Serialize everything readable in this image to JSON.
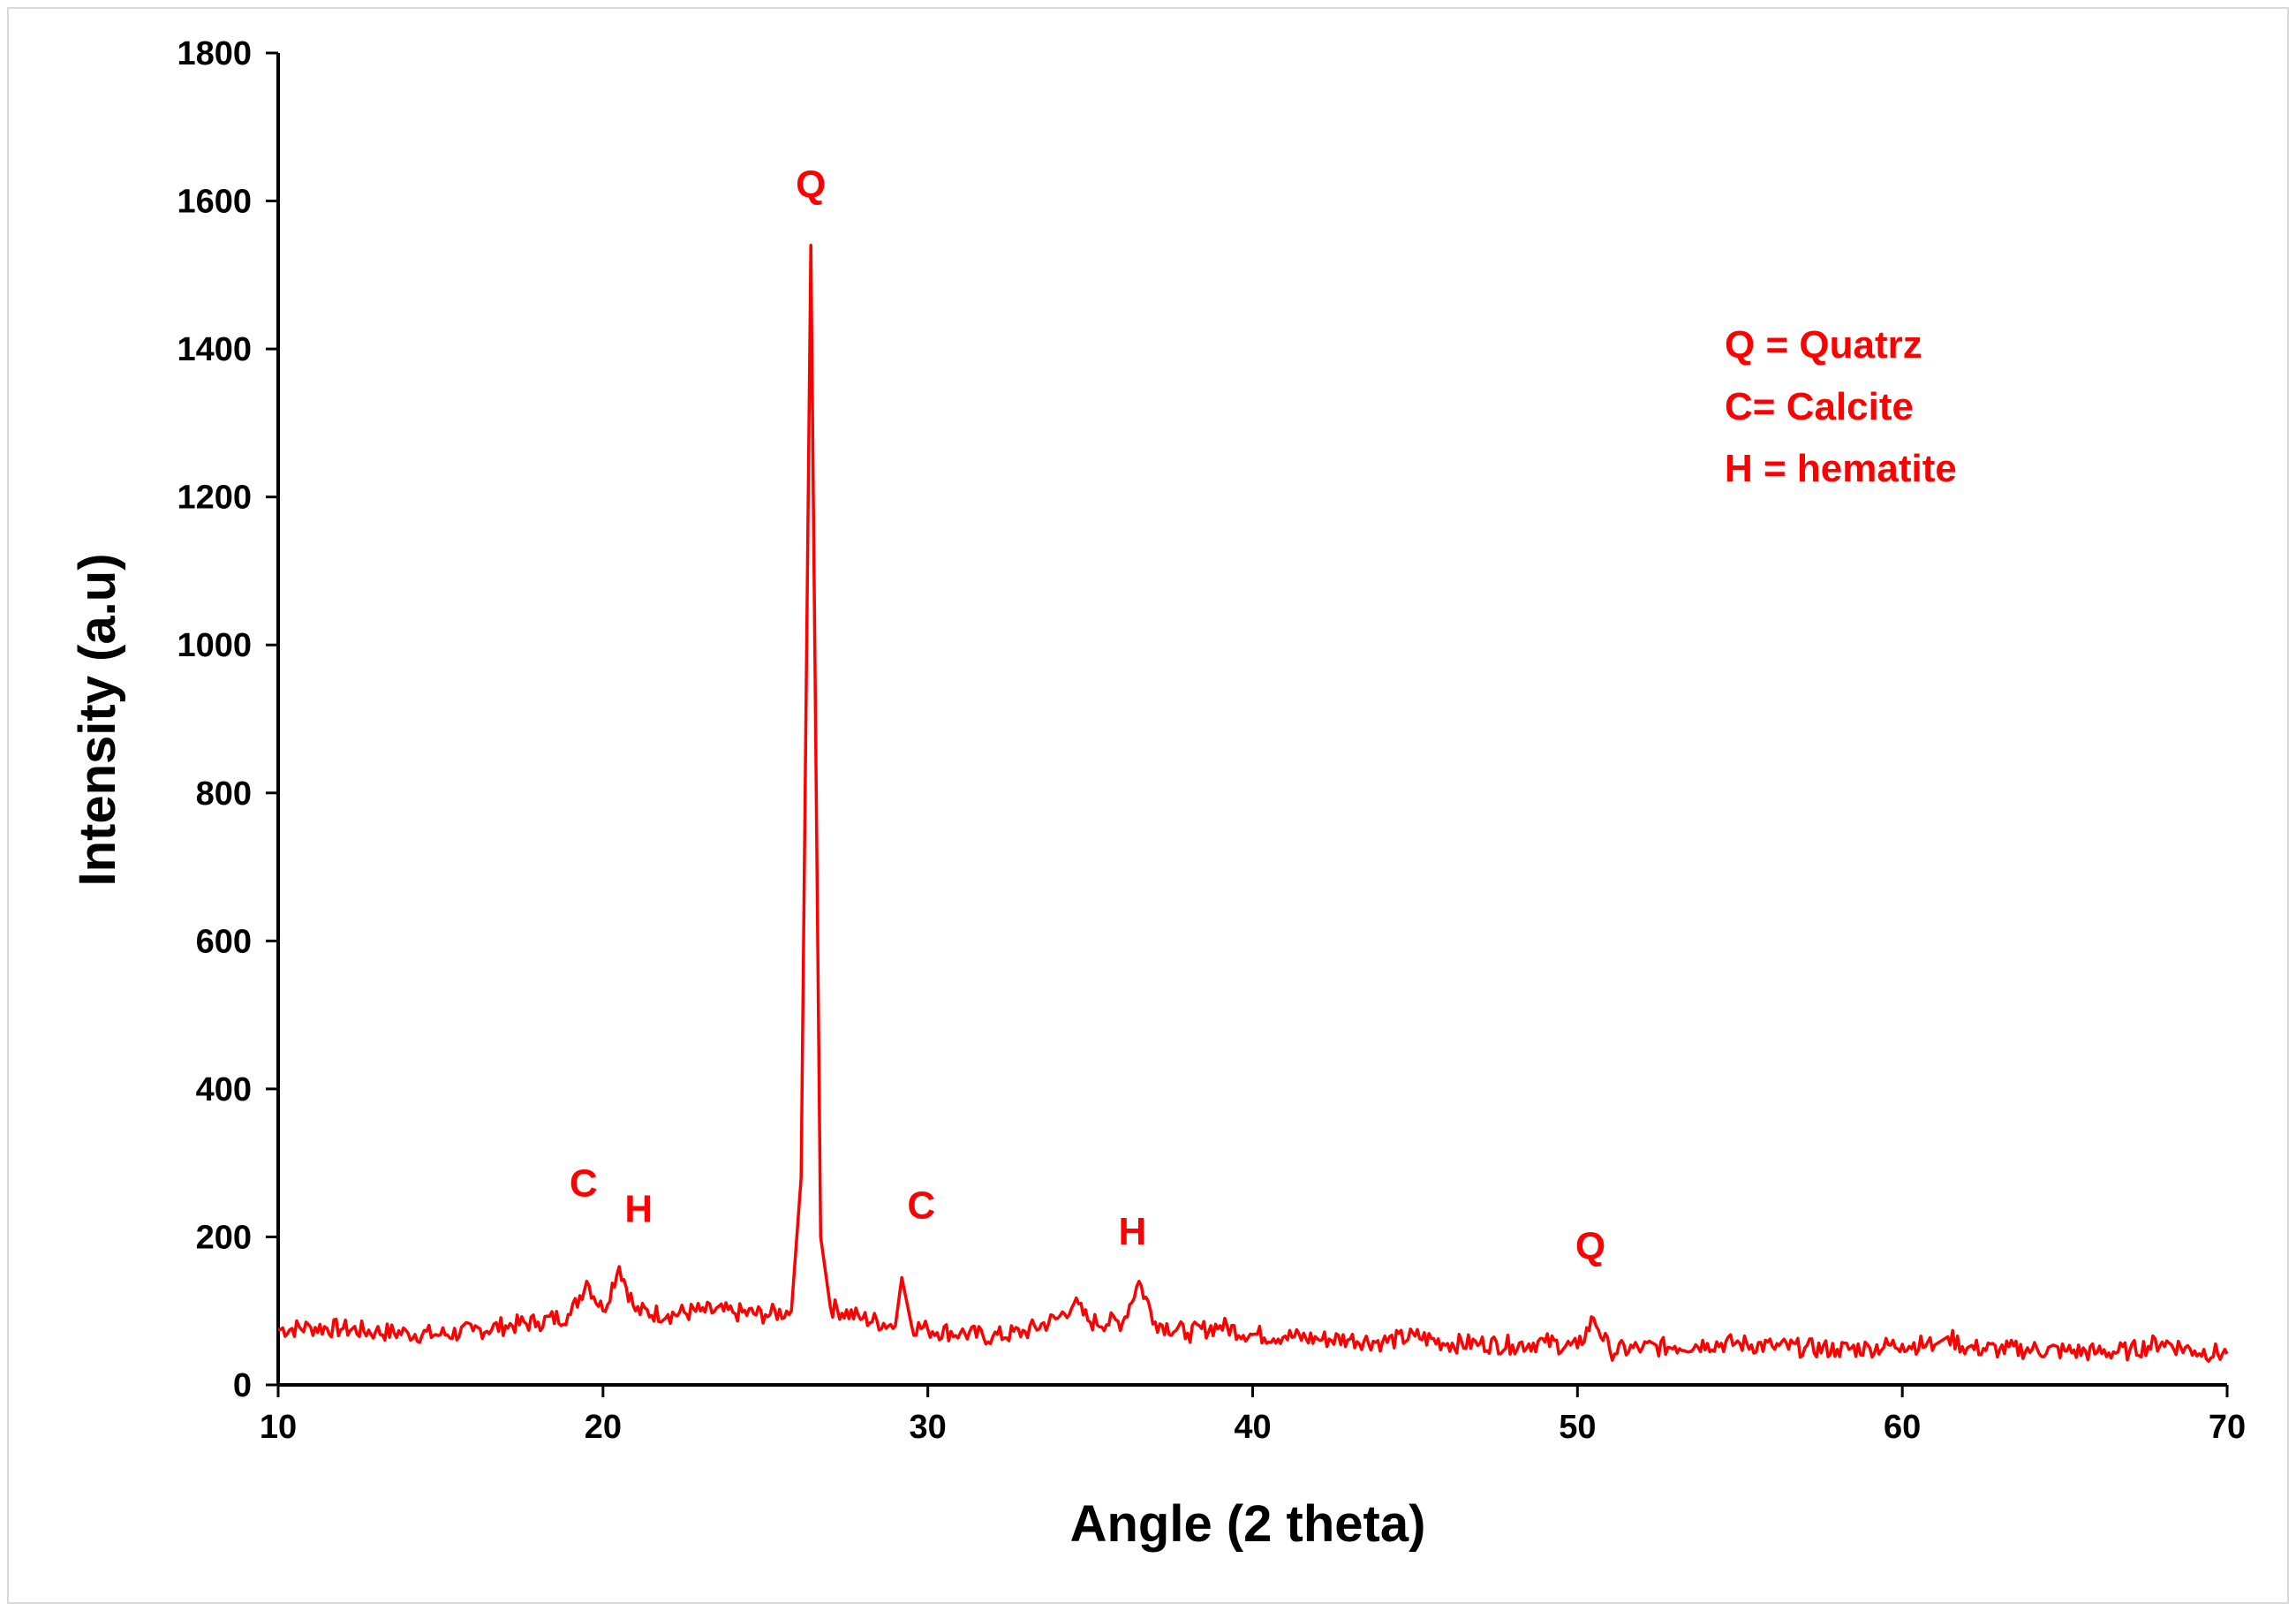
{
  "chart_data": {
    "type": "line",
    "title": "",
    "xlabel": "Angle (2 theta)",
    "ylabel": "Intensity (a.u)",
    "xlim": [
      10,
      70
    ],
    "ylim": [
      0,
      1800
    ],
    "xticks": [
      10,
      20,
      30,
      40,
      50,
      60,
      70
    ],
    "yticks": [
      0,
      200,
      400,
      600,
      800,
      1000,
      1200,
      1400,
      1600,
      1800
    ],
    "grid": false,
    "color": "#ff0000",
    "series": [
      {
        "x": [
          10,
          11,
          12,
          13,
          14,
          15,
          16,
          17,
          18,
          19,
          19.5,
          20,
          20.5,
          21,
          22,
          23,
          24,
          25,
          25.8,
          26.1,
          26.4,
          26.7,
          27,
          28,
          29,
          29.2,
          29.5,
          30,
          31,
          32,
          33,
          34,
          34.5,
          35,
          36,
          36.5,
          37,
          38,
          39,
          40,
          41,
          42,
          43,
          44,
          45,
          46,
          47,
          48,
          49,
          50,
          50.5,
          51,
          52,
          53,
          54,
          55,
          56,
          57,
          58,
          59,
          60,
          61,
          61.4,
          62,
          63,
          64,
          65,
          66,
          67,
          68,
          69,
          70
        ],
        "y": [
          75,
          78,
          76,
          72,
          70,
          68,
          73,
          80,
          85,
          95,
          140,
          100,
          160,
          100,
          95,
          100,
          98,
          95,
          100,
          280,
          1540,
          200,
          105,
          90,
          80,
          145,
          80,
          75,
          70,
          65,
          72,
          90,
          110,
          85,
          85,
          140,
          85,
          70,
          80,
          68,
          66,
          62,
          62,
          58,
          66,
          56,
          56,
          54,
          58,
          50,
          90,
          46,
          50,
          52,
          56,
          56,
          52,
          50,
          48,
          50,
          55,
          54,
          65,
          50,
          48,
          48,
          46,
          44,
          46,
          58,
          46,
          42
        ]
      }
    ],
    "annotations": [
      {
        "text": "C",
        "x": 19.4,
        "y": 255
      },
      {
        "text": "H",
        "x": 21.1,
        "y": 220
      },
      {
        "text": "Q",
        "x": 26.4,
        "y": 1605
      },
      {
        "text": "C",
        "x": 29.8,
        "y": 225
      },
      {
        "text": "H",
        "x": 36.3,
        "y": 190
      },
      {
        "text": "Q",
        "x": 50.4,
        "y": 170
      }
    ],
    "legend": {
      "placement": "top-right",
      "entries": [
        "Q = Quatrz",
        "C= Calcite",
        "H = hematite"
      ]
    }
  }
}
